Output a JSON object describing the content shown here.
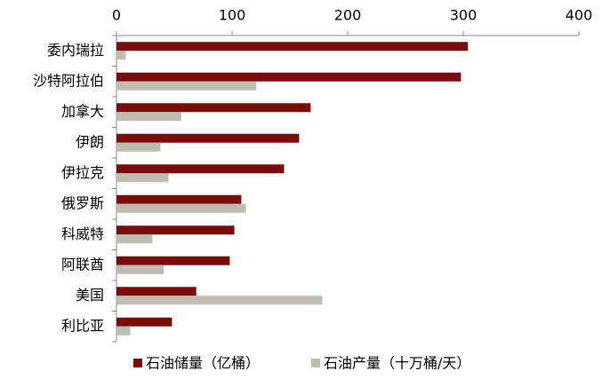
{
  "chart_data": {
    "type": "hbar",
    "categories": [
      "委内瑞拉",
      "沙特阿拉伯",
      "加拿大",
      "伊朗",
      "伊拉克",
      "俄罗斯",
      "科威特",
      "阿联酋",
      "美国",
      "利比亚"
    ],
    "series": [
      {
        "name": "石油储量（亿桶）",
        "color": "#7b0c0c",
        "values": [
          304,
          298,
          168,
          158,
          145,
          108,
          102,
          98,
          69,
          48
        ]
      },
      {
        "name": "石油产量（十万桶/天）",
        "color": "#bfbcb0",
        "values": [
          8,
          121,
          56,
          38,
          45,
          112,
          31,
          41,
          178,
          12
        ]
      }
    ],
    "xlim": [
      0,
      400
    ],
    "xticks": [
      0,
      100,
      200,
      300,
      400
    ],
    "grid": false,
    "legend": "bottom"
  }
}
